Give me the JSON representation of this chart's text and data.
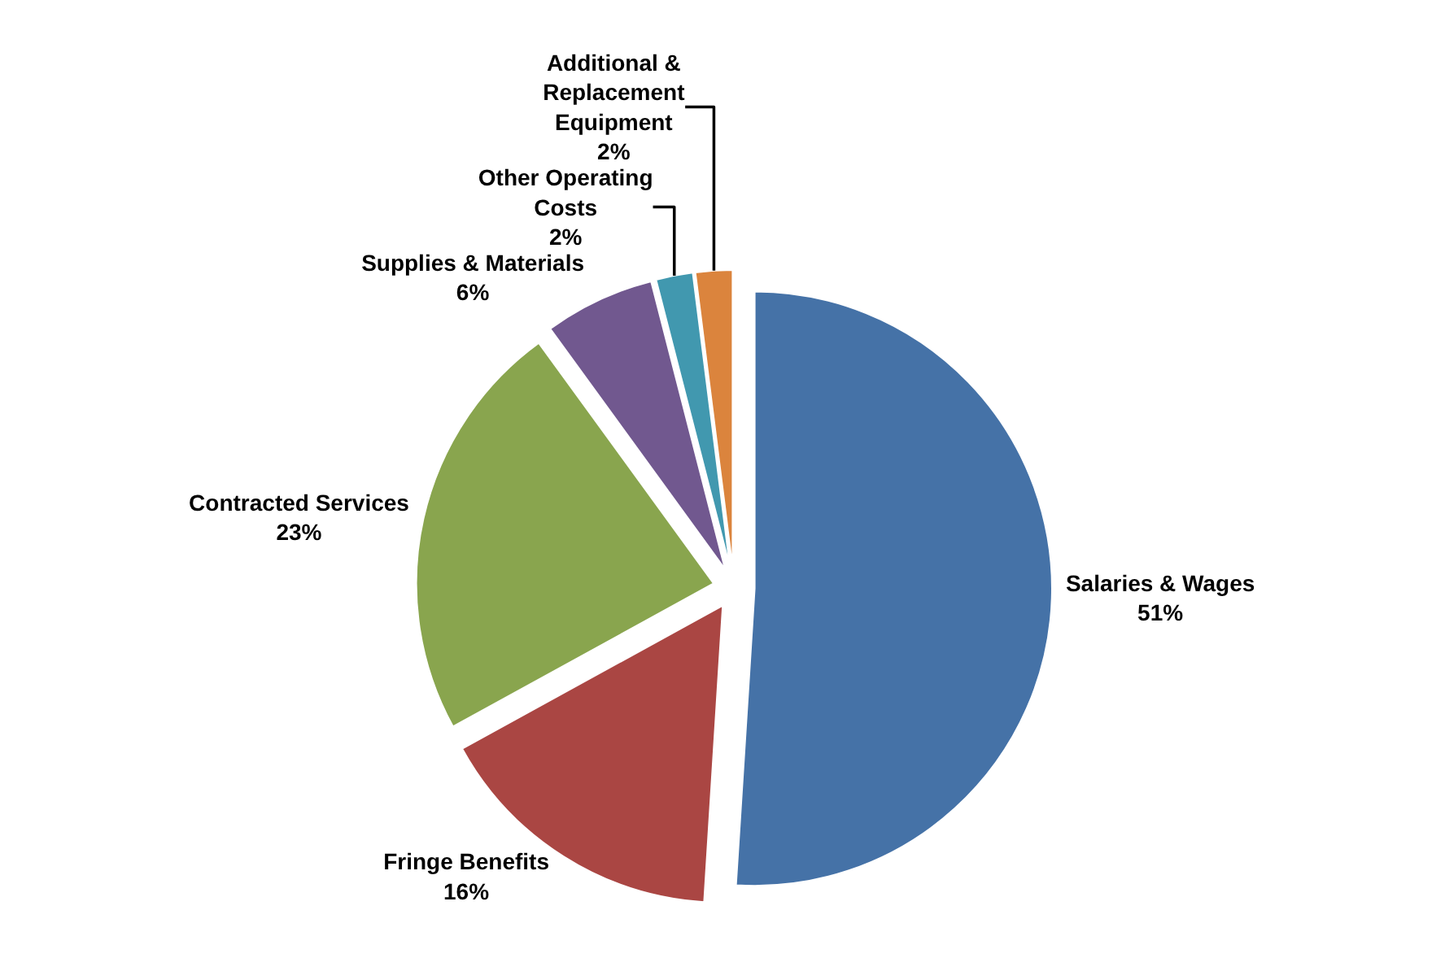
{
  "chart_data": {
    "type": "pie",
    "categories": [
      "Salaries & Wages",
      "Fringe Benefits",
      "Contracted Services",
      "Supplies & Materials",
      "Other Operating\nCosts",
      "Additional &\nReplacement\nEquipment"
    ],
    "values": [
      51,
      16,
      23,
      6,
      2,
      2
    ],
    "value_labels": [
      "51%",
      "16%",
      "23%",
      "6%",
      "2%",
      "2%"
    ],
    "colors": [
      "#4572a7",
      "#aa4643",
      "#89a54e",
      "#71588f",
      "#4198af",
      "#db843d"
    ],
    "legend": false
  }
}
